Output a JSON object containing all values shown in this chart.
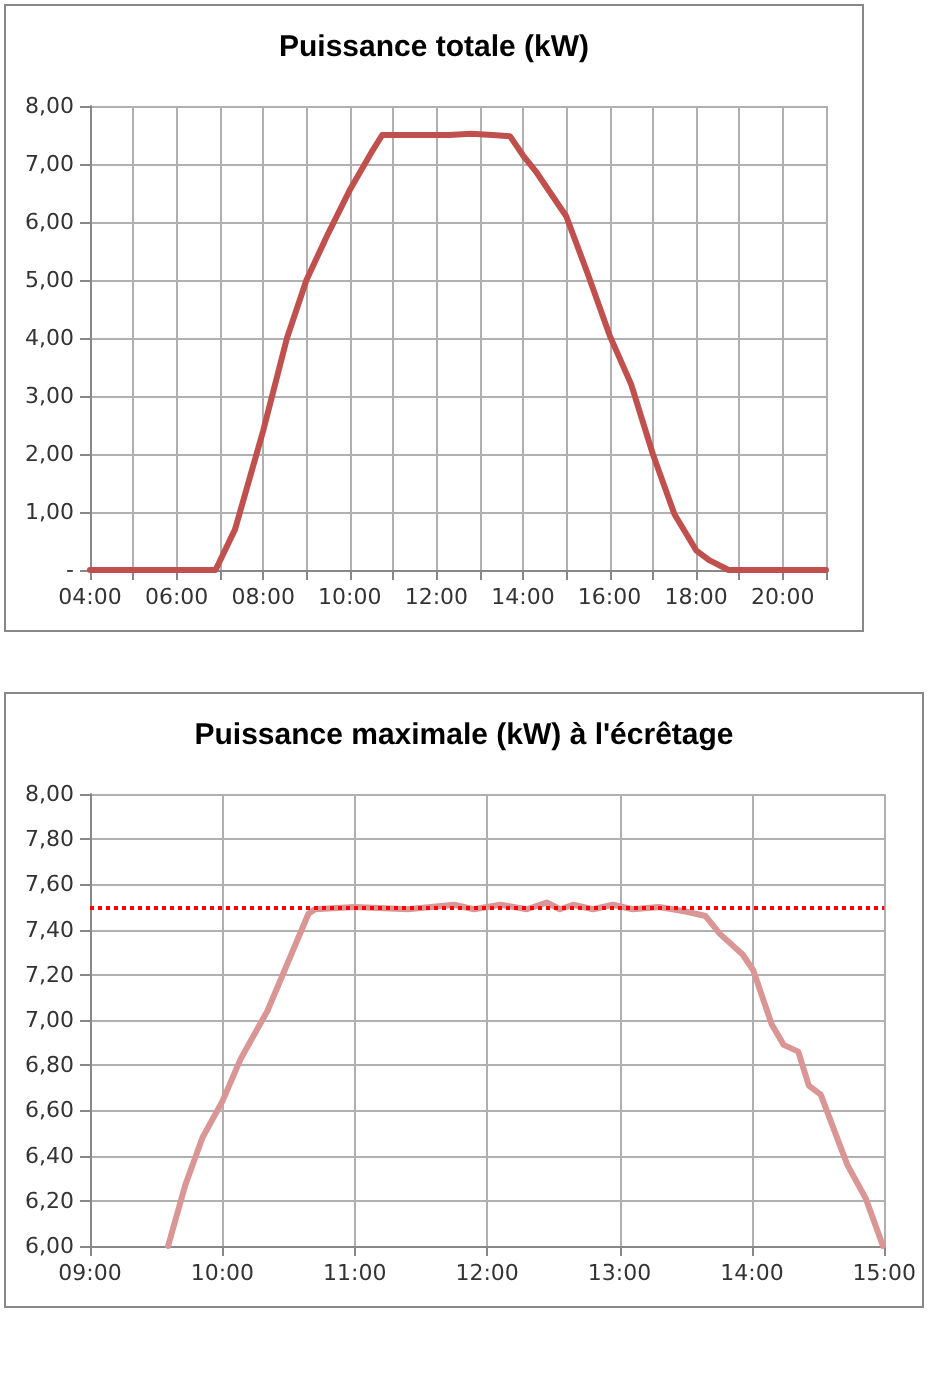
{
  "chart_data": [
    {
      "type": "line",
      "title": "Puissance totale (kW)",
      "grid": true,
      "marker": "none",
      "line_style": "solid",
      "xlim": [
        4,
        21
      ],
      "xticks": [
        {
          "value": 4,
          "label": "04:00"
        },
        {
          "value": 5,
          "label": null
        },
        {
          "value": 6,
          "label": "06:00"
        },
        {
          "value": 7,
          "label": null
        },
        {
          "value": 8,
          "label": "08:00"
        },
        {
          "value": 9,
          "label": null
        },
        {
          "value": 10,
          "label": "10:00"
        },
        {
          "value": 11,
          "label": null
        },
        {
          "value": 12,
          "label": "12:00"
        },
        {
          "value": 13,
          "label": null
        },
        {
          "value": 14,
          "label": "14:00"
        },
        {
          "value": 15,
          "label": null
        },
        {
          "value": 16,
          "label": "16:00"
        },
        {
          "value": 17,
          "label": null
        },
        {
          "value": 18,
          "label": "18:00"
        },
        {
          "value": 19,
          "label": null
        },
        {
          "value": 20,
          "label": "20:00"
        },
        {
          "value": 21,
          "label": null
        }
      ],
      "ylim": [
        0,
        8
      ],
      "yticks": [
        {
          "value": 0,
          "label": "-"
        },
        {
          "value": 1,
          "label": "1,00"
        },
        {
          "value": 2,
          "label": "2,00"
        },
        {
          "value": 3,
          "label": "3,00"
        },
        {
          "value": 4,
          "label": "4,00"
        },
        {
          "value": 5,
          "label": "5,00"
        },
        {
          "value": 6,
          "label": "6,00"
        },
        {
          "value": 7,
          "label": "7,00"
        },
        {
          "value": 8,
          "label": "8,00"
        }
      ],
      "series": [
        {
          "color": "#c0504d",
          "x": [
            4,
            6.9,
            7.35,
            8.0,
            8.55,
            9.0,
            9.5,
            10.0,
            10.5,
            10.75,
            11.5,
            12.3,
            12.8,
            13.3,
            13.7,
            14.0,
            14.3,
            15.0,
            15.5,
            16.0,
            16.5,
            17.0,
            17.5,
            18.0,
            18.3,
            18.75,
            21
          ],
          "values": [
            0,
            0,
            0.7,
            2.4,
            4.0,
            5.0,
            5.8,
            6.55,
            7.2,
            7.5,
            7.5,
            7.5,
            7.52,
            7.5,
            7.48,
            7.15,
            6.87,
            6.1,
            5.1,
            4.05,
            3.2,
            2.0,
            0.96,
            0.34,
            0.17,
            0,
            0
          ]
        }
      ]
    },
    {
      "type": "line",
      "title": "Puissance maximale (kW) à l'écrêtage",
      "grid": true,
      "marker": "none",
      "line_style": "solid",
      "xlim": [
        9,
        15
      ],
      "xticks": [
        {
          "value": 9,
          "label": "09:00"
        },
        {
          "value": 10,
          "label": "10:00"
        },
        {
          "value": 11,
          "label": "11:00"
        },
        {
          "value": 12,
          "label": "12:00"
        },
        {
          "value": 13,
          "label": "13:00"
        },
        {
          "value": 14,
          "label": "14:00"
        },
        {
          "value": 15,
          "label": "15:00"
        }
      ],
      "ylim": [
        6,
        8
      ],
      "yticks": [
        {
          "value": 6,
          "label": "6,00"
        },
        {
          "value": 6.2,
          "label": "6,20"
        },
        {
          "value": 6.4,
          "label": "6,40"
        },
        {
          "value": 6.6,
          "label": "6,60"
        },
        {
          "value": 6.8,
          "label": "6,80"
        },
        {
          "value": 7,
          "label": "7,00"
        },
        {
          "value": 7.2,
          "label": "7,20"
        },
        {
          "value": 7.4,
          "label": "7,40"
        },
        {
          "value": 7.6,
          "label": "7,60"
        },
        {
          "value": 7.8,
          "label": "7,80"
        },
        {
          "value": 8,
          "label": "8,00"
        }
      ],
      "ref_lines": [
        {
          "axis": "y",
          "value": 7.5,
          "color": "#ff0000",
          "line_style": "dotted"
        }
      ],
      "series": [
        {
          "color": "#d99694",
          "x": [
            9.59,
            9.72,
            9.85,
            10.0,
            10.14,
            10.34,
            10.47,
            10.65,
            10.7,
            11.0,
            11.4,
            11.75,
            11.9,
            12.1,
            12.3,
            12.45,
            12.55,
            12.65,
            12.8,
            12.95,
            13.1,
            13.3,
            13.5,
            13.65,
            13.76,
            13.93,
            14.01,
            14.15,
            14.24,
            14.35,
            14.43,
            14.52,
            14.72,
            14.86,
            14.99
          ],
          "values": [
            6.0,
            6.27,
            6.48,
            6.64,
            6.83,
            7.04,
            7.22,
            7.47,
            7.49,
            7.5,
            7.49,
            7.51,
            7.49,
            7.51,
            7.49,
            7.52,
            7.49,
            7.51,
            7.49,
            7.51,
            7.49,
            7.5,
            7.48,
            7.46,
            7.38,
            7.29,
            7.22,
            6.98,
            6.89,
            6.86,
            6.71,
            6.67,
            6.36,
            6.21,
            6.0
          ]
        }
      ]
    }
  ]
}
